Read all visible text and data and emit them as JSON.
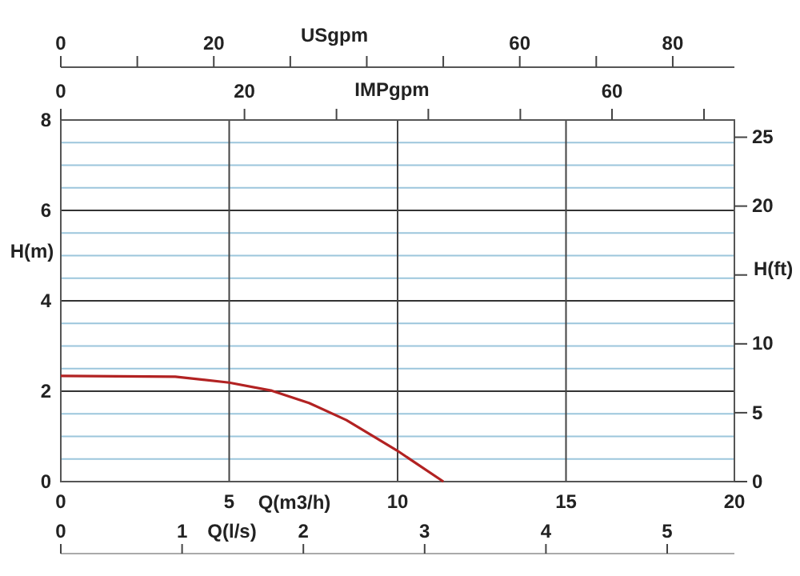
{
  "chart_data": {
    "type": "line",
    "xlabel": "Q(m3/h)",
    "ylabel": "H(m)",
    "y2label": "H(ft)",
    "x2label": "USgpm",
    "xlim": [
      0,
      20
    ],
    "xticks": [
      0,
      5,
      10,
      15,
      20
    ],
    "ylim": [
      0,
      8
    ],
    "yticks": [
      0,
      {
        "value": 0.5,
        "label": null
      },
      {
        "value": 1,
        "label": null
      },
      {
        "value": 1.5,
        "label": null
      },
      2,
      {
        "value": 2.5,
        "label": null
      },
      {
        "value": 3,
        "label": null
      },
      {
        "value": 3.5,
        "label": null
      },
      4,
      {
        "value": 4.5,
        "label": null
      },
      {
        "value": 5,
        "label": null
      },
      {
        "value": 5.5,
        "label": null
      },
      6,
      {
        "value": 6.5,
        "label": null
      },
      {
        "value": 7,
        "label": null
      },
      {
        "value": 7.5,
        "label": null
      },
      8
    ],
    "y2lim": [
      0,
      26.25
    ],
    "y2ticks": [
      0,
      5,
      10,
      {
        "value": 15,
        "label": null
      },
      20,
      25
    ],
    "x2lim": [
      0,
      88.06
    ],
    "x2ticks": [
      0,
      20,
      60,
      80
    ],
    "grid": true,
    "marker": "none",
    "line_style": "solid",
    "annotations": [
      "IMPgpm",
      "0",
      "20",
      "60",
      "Q(l/s)",
      "0",
      "1",
      "2",
      "3",
      "4",
      "5"
    ],
    "series": [
      {
        "color": "#b22222",
        "x": [
          0,
          3.4,
          5,
          6.27,
          7.37,
          8.48,
          9.98,
          11.36
        ],
        "values": [
          2.34,
          2.32,
          2.19,
          2.01,
          1.74,
          1.36,
          0.69,
          0
        ]
      }
    ]
  }
}
